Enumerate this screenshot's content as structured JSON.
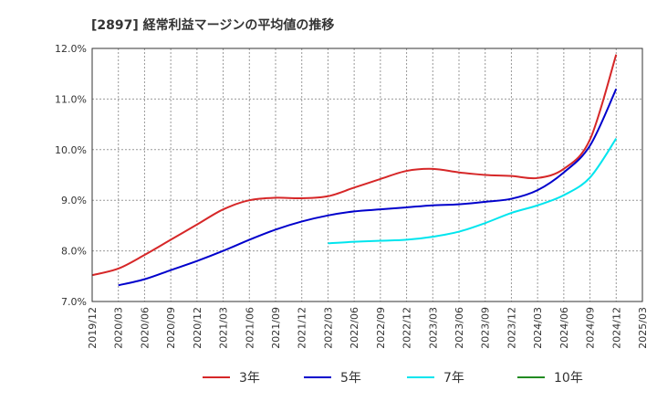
{
  "chart_data": {
    "type": "line",
    "title": "[2897]  経常利益マージンの平均値の推移",
    "xlabel": "",
    "ylabel": "",
    "x_ticks": [
      "2019/12",
      "2020/03",
      "2020/06",
      "2020/09",
      "2020/12",
      "2021/03",
      "2021/06",
      "2021/09",
      "2021/12",
      "2022/03",
      "2022/06",
      "2022/09",
      "2022/12",
      "2023/03",
      "2023/06",
      "2023/09",
      "2023/12",
      "2024/03",
      "2024/06",
      "2024/09",
      "2024/12",
      "2025/03"
    ],
    "y_ticks": [
      "7.0%",
      "8.0%",
      "9.0%",
      "10.0%",
      "11.0%",
      "12.0%"
    ],
    "ylim": [
      7.0,
      12.0
    ],
    "grid": true,
    "legend_position": "bottom",
    "series": [
      {
        "name": "3年",
        "color": "#d62728",
        "points": [
          [
            "2019/12",
            7.52
          ],
          [
            "2020/03",
            7.65
          ],
          [
            "2020/06",
            7.92
          ],
          [
            "2020/09",
            8.22
          ],
          [
            "2020/12",
            8.52
          ],
          [
            "2021/03",
            8.82
          ],
          [
            "2021/06",
            9.0
          ],
          [
            "2021/09",
            9.05
          ],
          [
            "2021/12",
            9.04
          ],
          [
            "2022/03",
            9.08
          ],
          [
            "2022/06",
            9.25
          ],
          [
            "2022/09",
            9.42
          ],
          [
            "2022/12",
            9.58
          ],
          [
            "2023/03",
            9.62
          ],
          [
            "2023/06",
            9.55
          ],
          [
            "2023/09",
            9.5
          ],
          [
            "2023/12",
            9.48
          ],
          [
            "2024/03",
            9.44
          ],
          [
            "2024/06",
            9.62
          ],
          [
            "2024/09",
            10.2
          ],
          [
            "2024/12",
            11.88
          ]
        ]
      },
      {
        "name": "5年",
        "color": "#0000cc",
        "points": [
          [
            "2020/03",
            7.32
          ],
          [
            "2020/06",
            7.44
          ],
          [
            "2020/09",
            7.62
          ],
          [
            "2020/12",
            7.8
          ],
          [
            "2021/03",
            8.0
          ],
          [
            "2021/06",
            8.22
          ],
          [
            "2021/09",
            8.42
          ],
          [
            "2021/12",
            8.58
          ],
          [
            "2022/03",
            8.7
          ],
          [
            "2022/06",
            8.78
          ],
          [
            "2022/09",
            8.82
          ],
          [
            "2022/12",
            8.86
          ],
          [
            "2023/03",
            8.9
          ],
          [
            "2023/06",
            8.92
          ],
          [
            "2023/09",
            8.97
          ],
          [
            "2023/12",
            9.03
          ],
          [
            "2024/03",
            9.2
          ],
          [
            "2024/06",
            9.55
          ],
          [
            "2024/09",
            10.08
          ],
          [
            "2024/12",
            11.2
          ]
        ]
      },
      {
        "name": "7年",
        "color": "#00e5ee",
        "points": [
          [
            "2022/03",
            8.15
          ],
          [
            "2022/06",
            8.18
          ],
          [
            "2022/09",
            8.2
          ],
          [
            "2022/12",
            8.22
          ],
          [
            "2023/03",
            8.28
          ],
          [
            "2023/06",
            8.38
          ],
          [
            "2023/09",
            8.55
          ],
          [
            "2023/12",
            8.75
          ],
          [
            "2024/03",
            8.9
          ],
          [
            "2024/06",
            9.1
          ],
          [
            "2024/09",
            9.45
          ],
          [
            "2024/12",
            10.22
          ]
        ]
      },
      {
        "name": "10年",
        "color": "#228b22",
        "points": []
      }
    ]
  }
}
